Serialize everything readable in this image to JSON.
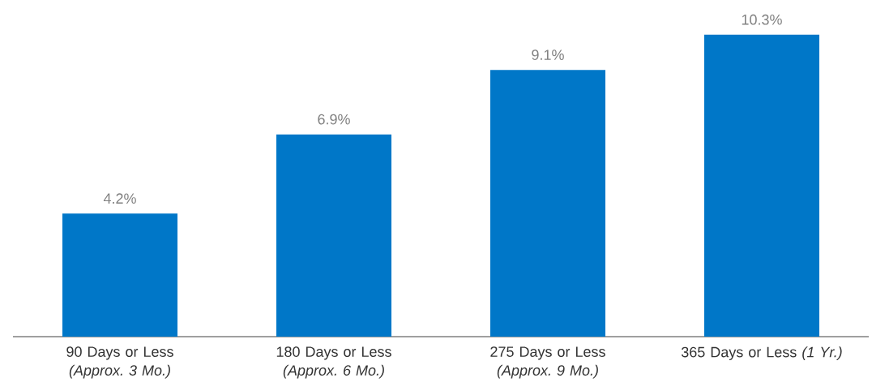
{
  "chart_data": {
    "type": "bar",
    "categories": [
      "90 Days or Less *(Approx. 3 Mo.)*",
      "180 Days or Less *(Approx. 6 Mo.)*",
      "275 Days or Less *(Approx. 9 Mo.)*",
      "365 Days or Less *(1 Yr.)*"
    ],
    "values": [
      4.2,
      6.9,
      9.1,
      10.3
    ],
    "value_labels": [
      "4.2%",
      "6.9%",
      "9.1%",
      "10.3%"
    ],
    "color": "#0077c8"
  }
}
